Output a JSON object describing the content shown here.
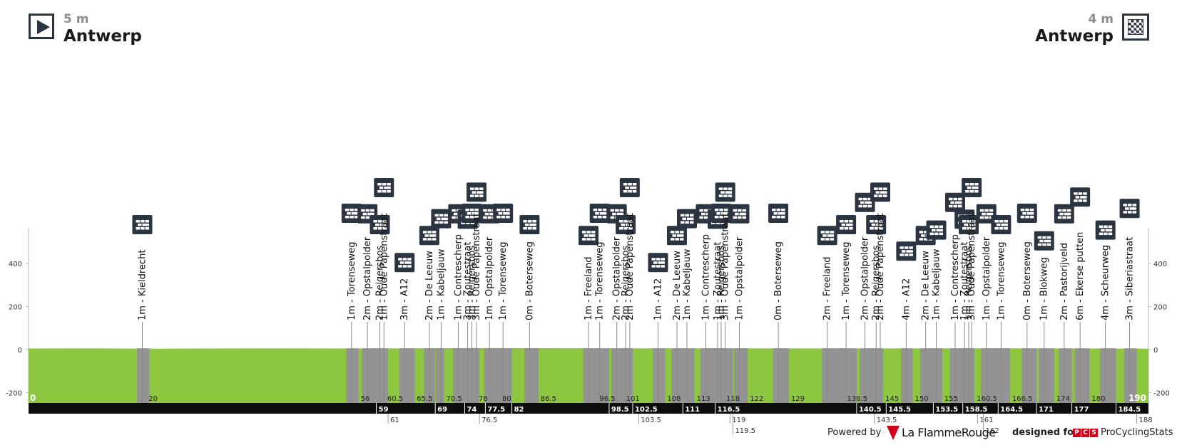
{
  "header": {
    "start": {
      "altitude": "5 m",
      "name": "Antwerp",
      "icon": "start-play-icon"
    },
    "finish": {
      "altitude": "4 m",
      "name": "Antwerp",
      "icon": "finish-checkered-flag-icon"
    }
  },
  "footer": {
    "powered_by": "Powered by",
    "brand": "La FlammeRouge",
    "designed_for": "designed for",
    "pcs_letters": [
      "P",
      "C",
      "S"
    ],
    "pcs_name": "ProCyclingStats"
  },
  "chart_data": {
    "type": "area",
    "title": "",
    "xlabel": "",
    "ylabel": "",
    "xlim": [
      0,
      190
    ],
    "ylim": [
      -250,
      500
    ],
    "yticks": [
      -200,
      0,
      200,
      400
    ],
    "x_end_labels": [
      "0",
      "190"
    ],
    "colors": {
      "road": "#8dc63f",
      "cobbles": "#939393",
      "axis_bar": "#0d0d0d",
      "icon_bg": "#2b3441",
      "line": "#888888"
    },
    "segment_icon": "cobblestone-icon",
    "elevation": {
      "x": [
        0,
        10,
        20,
        30,
        40,
        56,
        76,
        100,
        120,
        140,
        160,
        180,
        190
      ],
      "y": [
        5,
        6,
        4,
        5,
        6,
        5,
        7,
        6,
        6,
        5,
        6,
        5,
        4
      ]
    },
    "cobbled_sectors": [
      {
        "km": 19.3,
        "end": 20.5,
        "label": "1m - Kieldrecht"
      },
      {
        "km": 54.8,
        "end": 56.0,
        "label": "1m - Torenseweg"
      },
      {
        "km": 57.5,
        "end": 59.0,
        "label": "2m - Opstalpolder"
      },
      {
        "km": 59.6,
        "end": 60.3,
        "label": "2m - Reigersbos"
      },
      {
        "km": 60.3,
        "end": 61.0,
        "label": "1m - Oude Papenstraat"
      },
      {
        "km": 63.8,
        "end": 65.5,
        "label": "3m - A12"
      },
      {
        "km": 68.0,
        "end": 69.0,
        "label": "2m - De Leeuw"
      },
      {
        "km": 70.0,
        "end": 70.5,
        "label": "1m - Kabeljauw"
      },
      {
        "km": 72.9,
        "end": 74.0,
        "label": "1m - Contrescherp"
      },
      {
        "km": 74.5,
        "end": 75.0,
        "label": "3m - Zoutestraat"
      },
      {
        "km": 75.2,
        "end": 76.0,
        "label": "3m - Reigersbos"
      },
      {
        "km": 76.0,
        "end": 76.5,
        "label": "3m - Oude Papenstraat"
      },
      {
        "km": 78.2,
        "end": 80.0,
        "label": "1m - Opstalpolder"
      },
      {
        "km": 80.5,
        "end": 82.0,
        "label": "1m - Torenseweg"
      },
      {
        "km": 85.0,
        "end": 86.5,
        "label": "0m - Boterseweg"
      },
      {
        "km": 95.0,
        "end": 96.5,
        "label": "1m - Freeland"
      },
      {
        "km": 96.9,
        "end": 98.5,
        "label": "1m - Torenseweg"
      },
      {
        "km": 99.8,
        "end": 101.0,
        "label": "2m - Opstalpolder"
      },
      {
        "km": 101.3,
        "end": 102.0,
        "label": "2m - Reigersbos"
      },
      {
        "km": 102.0,
        "end": 102.5,
        "label": "2m - Oude Papenstraat"
      },
      {
        "km": 106.8,
        "end": 108.0,
        "label": "1m - A12"
      },
      {
        "km": 110.0,
        "end": 111.0,
        "label": "2m - De Leeuw"
      },
      {
        "km": 111.7,
        "end": 113.0,
        "label": "1m - Kabeljauw"
      },
      {
        "km": 114.9,
        "end": 116.5,
        "label": "1m - Contrescherp"
      },
      {
        "km": 116.9,
        "end": 117.5,
        "label": "1m - Zoutestraat"
      },
      {
        "km": 117.5,
        "end": 118.0,
        "label": "1m - Reigersbos"
      },
      {
        "km": 118.2,
        "end": 119.5,
        "label": "3m - Oude Papenstraat"
      },
      {
        "km": 120.6,
        "end": 122.0,
        "label": "1m - Opstalpolder"
      },
      {
        "km": 127.2,
        "end": 129.0,
        "label": "0m - Boterseweg"
      },
      {
        "km": 135.5,
        "end": 138.5,
        "label": "2m - Freeland"
      },
      {
        "km": 138.7,
        "end": 140.5,
        "label": "1m - Torenseweg"
      },
      {
        "km": 141.9,
        "end": 143.5,
        "label": "2m - Opstalpolder"
      },
      {
        "km": 143.8,
        "end": 144.5,
        "label": "2m - Reigersbos"
      },
      {
        "km": 144.5,
        "end": 145.0,
        "label": "2m - Oude Papenstraat"
      },
      {
        "km": 148.9,
        "end": 150.0,
        "label": "4m - A12"
      },
      {
        "km": 152.2,
        "end": 153.5,
        "label": "2m - De Leeuw"
      },
      {
        "km": 154.0,
        "end": 155.0,
        "label": "1m - Kabeljauw"
      },
      {
        "km": 157.2,
        "end": 158.5,
        "label": "1m - Contrescherp"
      },
      {
        "km": 158.8,
        "end": 159.5,
        "label": "1m - Zoutestraat"
      },
      {
        "km": 159.5,
        "end": 160.0,
        "label": "1m - Reigersbos"
      },
      {
        "km": 160.0,
        "end": 160.5,
        "label": "3m - Oude Papenstraat"
      },
      {
        "km": 162.5,
        "end": 164.5,
        "label": "1m - Opstalpolder"
      },
      {
        "km": 165.0,
        "end": 166.5,
        "label": "1m - Torenseweg"
      },
      {
        "km": 169.4,
        "end": 171.0,
        "label": "0m - Boterseweg"
      },
      {
        "km": 172.3,
        "end": 174.0,
        "label": "1m - Blokweg"
      },
      {
        "km": 175.7,
        "end": 177.0,
        "label": "2m - Pastorijveld"
      },
      {
        "km": 178.4,
        "end": 180.0,
        "label": "6m - Ekerse putten"
      },
      {
        "km": 182.7,
        "end": 184.5,
        "label": "4m - Scheurweg"
      },
      {
        "km": 186.8,
        "end": 188.0,
        "label": "3m - Siberiastraat"
      }
    ],
    "km_labels_upper": [
      {
        "km": 20,
        "text": "20"
      },
      {
        "km": 56,
        "text": "56"
      },
      {
        "km": 60.5,
        "text": "60.5"
      },
      {
        "km": 65.5,
        "text": "65.5"
      },
      {
        "km": 70.5,
        "text": "70.5"
      },
      {
        "km": 76,
        "text": "76"
      },
      {
        "km": 80,
        "text": "80"
      },
      {
        "km": 86.5,
        "text": "86.5"
      },
      {
        "km": 96.5,
        "text": "96.5"
      },
      {
        "km": 101,
        "text": "101"
      },
      {
        "km": 108,
        "text": "108"
      },
      {
        "km": 113,
        "text": "113"
      },
      {
        "km": 118,
        "text": "118"
      },
      {
        "km": 122,
        "text": "122"
      },
      {
        "km": 129,
        "text": "129"
      },
      {
        "km": 138.5,
        "text": "138.5"
      },
      {
        "km": 145,
        "text": "145"
      },
      {
        "km": 150,
        "text": "150"
      },
      {
        "km": 155,
        "text": "155"
      },
      {
        "km": 160.5,
        "text": "160.5"
      },
      {
        "km": 166.5,
        "text": "166.5"
      },
      {
        "km": 174,
        "text": "174"
      },
      {
        "km": 180,
        "text": "180"
      }
    ],
    "km_labels_bar": [
      {
        "km": 59,
        "text": "59"
      },
      {
        "km": 69,
        "text": "69"
      },
      {
        "km": 74,
        "text": "74"
      },
      {
        "km": 77.5,
        "text": "77.5"
      },
      {
        "km": 82,
        "text": "82"
      },
      {
        "km": 98.5,
        "text": "98.5"
      },
      {
        "km": 102.5,
        "text": "102.5"
      },
      {
        "km": 111,
        "text": "111"
      },
      {
        "km": 116.5,
        "text": "116.5"
      },
      {
        "km": 140.5,
        "text": "140.5"
      },
      {
        "km": 145.5,
        "text": "145.5"
      },
      {
        "km": 153.5,
        "text": "153.5"
      },
      {
        "km": 158.5,
        "text": "158.5"
      },
      {
        "km": 164.5,
        "text": "164.5"
      },
      {
        "km": 171,
        "text": "171"
      },
      {
        "km": 177,
        "text": "177"
      },
      {
        "km": 184.5,
        "text": "184.5"
      }
    ],
    "km_labels_below": [
      {
        "km": 61,
        "text": "61",
        "row": 1
      },
      {
        "km": 76.5,
        "text": "76.5",
        "row": 1
      },
      {
        "km": 103.5,
        "text": "103.5",
        "row": 1
      },
      {
        "km": 119,
        "text": "119",
        "row": 1
      },
      {
        "km": 143.5,
        "text": "143.5",
        "row": 1
      },
      {
        "km": 161,
        "text": "161",
        "row": 1
      },
      {
        "km": 188,
        "text": "188",
        "row": 1
      },
      {
        "km": 119.5,
        "text": "119.5",
        "row": 2
      },
      {
        "km": 162,
        "text": "162",
        "row": 2
      }
    ]
  }
}
